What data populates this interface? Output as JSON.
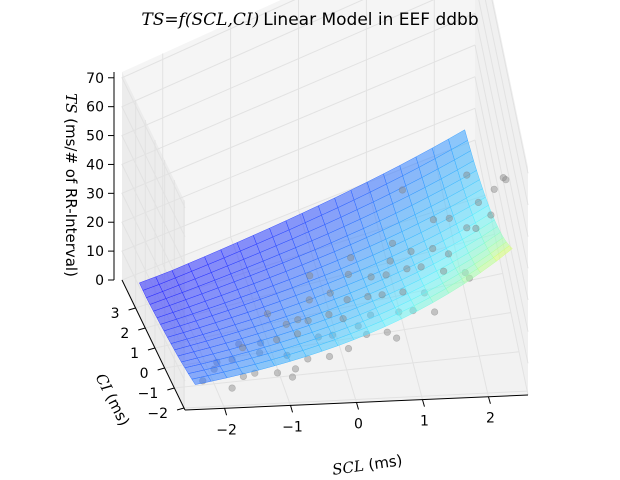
{
  "figure": {
    "title_math": "TS=f(SCL,CI)",
    "title_text": "Linear Model in EEF ddbb"
  },
  "chart_data": {
    "type": "scatter",
    "subtype": "3d-surface-with-scatter",
    "title": "TS=f(SCL,CI) Linear Model in EEF ddbb",
    "xlabel": {
      "math": "SCL",
      "text": " (ms)"
    },
    "ylabel": {
      "math": "CI",
      "text": " (ms)"
    },
    "zlabel": {
      "math": "TS",
      "text": " (ms/# of RR-Interval)"
    },
    "xlim": [
      -2.6,
      2.6
    ],
    "ylim": [
      -2.1,
      4.4
    ],
    "zlim": [
      0,
      72
    ],
    "xticks": [
      "−2",
      "−1",
      "0",
      "1",
      "2"
    ],
    "xtick_values": [
      -2,
      -1,
      0,
      1,
      2
    ],
    "yticks": [
      "−2",
      "−1",
      "0",
      "1",
      "2",
      "3"
    ],
    "ytick_values": [
      -2,
      -1,
      0,
      1,
      2,
      3
    ],
    "zticks": [
      "0",
      "10",
      "20",
      "30",
      "40",
      "50",
      "60",
      "70"
    ],
    "ztick_values": [
      0,
      10,
      20,
      30,
      40,
      50,
      60,
      70
    ],
    "grid": true,
    "surface": {
      "x_range": [
        -2.4,
        2.4
      ],
      "y_range": [
        -1.8,
        4.0
      ],
      "grid_size": [
        20,
        16
      ],
      "model": "exp",
      "params": {
        "a": 14.0,
        "bx": 0.33,
        "by": -0.22,
        "offset": -3.0
      },
      "colormap": [
        "#2a2aff",
        "#36aaff",
        "#5ff2ff",
        "#9cffb4",
        "#f2ff5a"
      ],
      "alpha": 0.55
    },
    "scatter": {
      "color": "#888888",
      "alpha": 0.45,
      "points": [
        {
          "x": -2.2,
          "y": -1.2,
          "z": 3
        },
        {
          "x": -2.0,
          "y": -1.0,
          "z": 5
        },
        {
          "x": -1.8,
          "y": -1.5,
          "z": 2
        },
        {
          "x": -1.7,
          "y": -0.8,
          "z": 6
        },
        {
          "x": -1.6,
          "y": -1.3,
          "z": 4
        },
        {
          "x": -1.5,
          "y": -0.5,
          "z": 7
        },
        {
          "x": -1.4,
          "y": -1.1,
          "z": 3
        },
        {
          "x": -1.3,
          "y": -0.9,
          "z": 8
        },
        {
          "x": -1.2,
          "y": -0.3,
          "z": 6
        },
        {
          "x": -1.1,
          "y": -1.4,
          "z": 5
        },
        {
          "x": -1.0,
          "y": -0.6,
          "z": 9
        },
        {
          "x": -0.9,
          "y": -1.0,
          "z": 7
        },
        {
          "x": -0.8,
          "y": -0.2,
          "z": 10
        },
        {
          "x": -0.8,
          "y": -1.2,
          "z": 4
        },
        {
          "x": -0.7,
          "y": -0.7,
          "z": 11
        },
        {
          "x": -0.6,
          "y": 0.0,
          "z": 9
        },
        {
          "x": -0.6,
          "y": -1.1,
          "z": 6
        },
        {
          "x": -0.5,
          "y": -0.4,
          "z": 12
        },
        {
          "x": -0.4,
          "y": -0.8,
          "z": 10
        },
        {
          "x": -0.4,
          "y": 0.2,
          "z": 13
        },
        {
          "x": -0.3,
          "y": -1.3,
          "z": 8
        },
        {
          "x": -0.2,
          "y": -0.5,
          "z": 14
        },
        {
          "x": -0.2,
          "y": -0.9,
          "z": 11
        },
        {
          "x": -0.1,
          "y": 0.1,
          "z": 15
        },
        {
          "x": 0.0,
          "y": -0.6,
          "z": 13
        },
        {
          "x": 0.0,
          "y": -1.2,
          "z": 9
        },
        {
          "x": 0.1,
          "y": -0.3,
          "z": 16
        },
        {
          "x": 0.2,
          "y": -0.8,
          "z": 12
        },
        {
          "x": 0.2,
          "y": 0.3,
          "z": 18
        },
        {
          "x": 0.3,
          "y": -1.0,
          "z": 11
        },
        {
          "x": 0.4,
          "y": -0.4,
          "z": 17
        },
        {
          "x": 0.4,
          "y": -0.7,
          "z": 14
        },
        {
          "x": 0.5,
          "y": 0.0,
          "z": 19
        },
        {
          "x": 0.6,
          "y": -1.1,
          "z": 12
        },
        {
          "x": 0.6,
          "y": -0.5,
          "z": 18
        },
        {
          "x": 0.7,
          "y": -0.2,
          "z": 21
        },
        {
          "x": 0.8,
          "y": -0.9,
          "z": 16
        },
        {
          "x": 0.8,
          "y": 0.1,
          "z": 22
        },
        {
          "x": 0.9,
          "y": -0.6,
          "z": 19
        },
        {
          "x": 1.0,
          "y": -1.0,
          "z": 17
        },
        {
          "x": 1.0,
          "y": -0.3,
          "z": 23
        },
        {
          "x": 1.1,
          "y": 0.0,
          "z": 25
        },
        {
          "x": 1.2,
          "y": -0.8,
          "z": 20
        },
        {
          "x": 1.2,
          "y": -0.4,
          "z": 24
        },
        {
          "x": 1.3,
          "y": -1.2,
          "z": 18
        },
        {
          "x": 1.4,
          "y": -0.2,
          "z": 27
        },
        {
          "x": 1.5,
          "y": -0.7,
          "z": 25
        },
        {
          "x": 1.6,
          "y": -0.5,
          "z": 28
        },
        {
          "x": 1.7,
          "y": 0.2,
          "z": 31
        },
        {
          "x": 1.8,
          "y": -0.9,
          "z": 26
        },
        {
          "x": 1.9,
          "y": -0.3,
          "z": 33
        },
        {
          "x": 2.0,
          "y": -0.6,
          "z": 36
        },
        {
          "x": 2.1,
          "y": -0.1,
          "z": 38
        },
        {
          "x": 2.2,
          "y": -0.8,
          "z": 42
        },
        {
          "x": 1.5,
          "y": 0.5,
          "z": 28
        },
        {
          "x": 0.9,
          "y": 0.6,
          "z": 22
        },
        {
          "x": 0.3,
          "y": 0.8,
          "z": 18
        },
        {
          "x": -0.3,
          "y": 0.9,
          "z": 14
        },
        {
          "x": -1.0,
          "y": 0.4,
          "z": 9
        },
        {
          "x": -1.9,
          "y": -0.6,
          "z": 4
        },
        {
          "x": 2.3,
          "y": -0.4,
          "z": 45
        },
        {
          "x": 2.0,
          "y": 0.5,
          "z": 40
        },
        {
          "x": 1.8,
          "y": -1.4,
          "z": 30
        },
        {
          "x": 2.4,
          "y": -1.0,
          "z": 55
        },
        {
          "x": 2.3,
          "y": -1.5,
          "z": 62
        },
        {
          "x": 1.1,
          "y": 1.0,
          "z": 34
        },
        {
          "x": -1.5,
          "y": -0.1,
          "z": 5
        },
        {
          "x": 0.7,
          "y": -1.4,
          "z": 13
        },
        {
          "x": -0.9,
          "y": -1.6,
          "z": 5
        }
      ]
    }
  }
}
